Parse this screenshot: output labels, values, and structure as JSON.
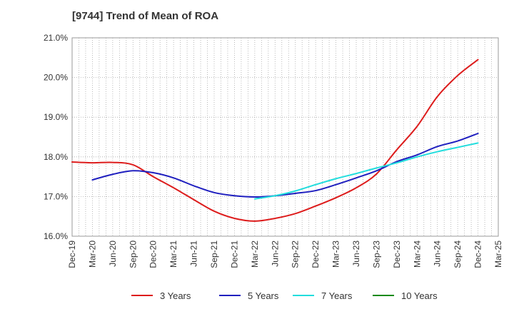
{
  "chart_data": {
    "type": "line",
    "title": "[9744]  Trend of Mean of ROA",
    "xlabel": "",
    "ylabel": "",
    "ylim": [
      16.0,
      21.0
    ],
    "y_ticks": [
      "16.0%",
      "17.0%",
      "18.0%",
      "19.0%",
      "20.0%",
      "21.0%"
    ],
    "x_ticks": [
      "Dec-19",
      "Mar-20",
      "Jun-20",
      "Sep-20",
      "Dec-20",
      "Mar-21",
      "Jun-21",
      "Sep-21",
      "Dec-21",
      "Mar-22",
      "Jun-22",
      "Sep-22",
      "Dec-22",
      "Mar-23",
      "Jun-23",
      "Sep-23",
      "Dec-23",
      "Mar-24",
      "Jun-24",
      "Sep-24",
      "Dec-24",
      "Mar-25"
    ],
    "x_unit": "months since Dec-19",
    "grid": true,
    "legend_position": "bottom",
    "series": [
      {
        "name": "3 Years",
        "color": "#dd1c1c",
        "x": [
          0,
          3,
          6,
          9,
          12,
          15,
          18,
          21,
          24,
          27,
          30,
          33,
          36,
          39,
          42,
          45,
          48,
          51,
          54,
          57,
          60
        ],
        "values": [
          17.87,
          17.85,
          17.86,
          17.8,
          17.5,
          17.22,
          16.92,
          16.63,
          16.45,
          16.38,
          16.45,
          16.57,
          16.76,
          16.97,
          17.22,
          17.57,
          18.18,
          18.77,
          19.52,
          20.05,
          20.45
        ]
      },
      {
        "name": "5 Years",
        "color": "#1f1fbf",
        "x": [
          3,
          6,
          9,
          12,
          15,
          18,
          21,
          24,
          27,
          30,
          33,
          36,
          39,
          42,
          45,
          48,
          51,
          54,
          57,
          60
        ],
        "values": [
          17.42,
          17.56,
          17.65,
          17.6,
          17.47,
          17.27,
          17.1,
          17.02,
          16.99,
          17.02,
          17.08,
          17.15,
          17.3,
          17.47,
          17.65,
          17.88,
          18.05,
          18.26,
          18.4,
          18.59
        ]
      },
      {
        "name": "7 Years",
        "color": "#22dddd",
        "x": [
          27,
          30,
          33,
          36,
          39,
          42,
          45,
          48,
          51,
          54,
          57,
          60
        ],
        "values": [
          16.94,
          17.02,
          17.14,
          17.3,
          17.45,
          17.58,
          17.72,
          17.85,
          18.0,
          18.13,
          18.24,
          18.35
        ]
      },
      {
        "name": "10 Years",
        "color": "#1a8a1a",
        "x": [],
        "values": []
      }
    ]
  }
}
